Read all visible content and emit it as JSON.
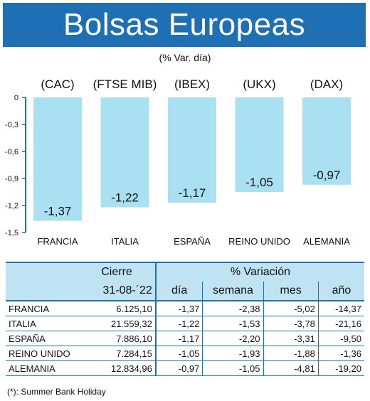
{
  "header": {
    "title": "Bolsas Europeas",
    "subtitle": "(% Var. día)"
  },
  "chart_data": {
    "type": "bar",
    "categories": [
      "FRANCIA",
      "ITALIA",
      "ESPAÑA",
      "REINO UNIDO",
      "ALEMANIA"
    ],
    "indices": [
      "(CAC)",
      "(FTSE MIB)",
      "(IBEX)",
      "(UKX)",
      "(DAX)"
    ],
    "values": [
      -1.37,
      -1.22,
      -1.17,
      -1.05,
      -0.97
    ],
    "value_labels": [
      "-1,37",
      "-1,22",
      "-1,17",
      "-1,05",
      "-0,97"
    ],
    "ylim": [
      -1.5,
      0
    ],
    "yticks": [
      0,
      -0.3,
      -0.6,
      -0.9,
      -1.2,
      -1.5
    ],
    "ytick_labels": [
      "0",
      "-0,3",
      "-0,6",
      "-0,9",
      "-1,2",
      "-1,5"
    ],
    "bar_color": "#a9e1f3",
    "axis_color": "#1f6fb5"
  },
  "table": {
    "group_headers": {
      "cierre": "Cierre",
      "variacion": "% Variación"
    },
    "date": "31-08-´22",
    "columns": [
      "día",
      "semana",
      "mes",
      "año"
    ],
    "rows": [
      {
        "name": "FRANCIA",
        "cierre": "6.125,10",
        "dia": "-1,37",
        "semana": "-2,38",
        "mes": "-5,02",
        "ano": "-14,37"
      },
      {
        "name": "ITALIA",
        "cierre": "21.559,32",
        "dia": "-1,22",
        "semana": "-1,53",
        "mes": "-3,78",
        "ano": "-21,16"
      },
      {
        "name": "ESPAÑA",
        "cierre": "7.886,10",
        "dia": "-1,17",
        "semana": "-2,20",
        "mes": "-3,31",
        "ano": "-9,50"
      },
      {
        "name": "REINO UNIDO",
        "cierre": "7.284,15",
        "dia": "-1,05",
        "semana": "-1,93",
        "mes": "-1,88",
        "ano": "-1,36"
      },
      {
        "name": "ALEMANIA",
        "cierre": "12.834,96",
        "dia": "-0,97",
        "semana": "-1,05",
        "mes": "-4,81",
        "ano": "-19,20"
      }
    ]
  },
  "footnote": "(*): Summer Bank Holiday",
  "colors": {
    "brand": "#1f6fb5",
    "header_bg": "#bfe3f2"
  }
}
